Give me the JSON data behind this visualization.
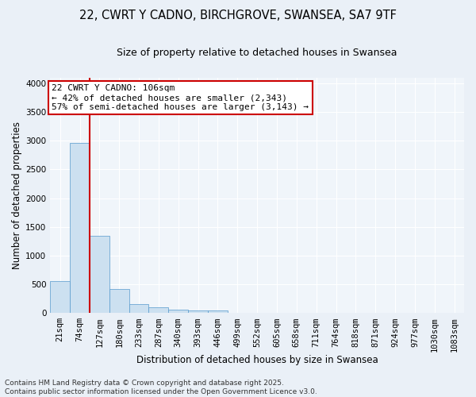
{
  "title_line1": "22, CWRT Y CADNO, BIRCHGROVE, SWANSEA, SA7 9TF",
  "title_line2": "Size of property relative to detached houses in Swansea",
  "xlabel": "Distribution of detached houses by size in Swansea",
  "ylabel": "Number of detached properties",
  "bin_labels": [
    "21sqm",
    "74sqm",
    "127sqm",
    "180sqm",
    "233sqm",
    "287sqm",
    "340sqm",
    "393sqm",
    "446sqm",
    "499sqm",
    "552sqm",
    "605sqm",
    "658sqm",
    "711sqm",
    "764sqm",
    "818sqm",
    "871sqm",
    "924sqm",
    "977sqm",
    "1030sqm",
    "1083sqm"
  ],
  "bar_heights": [
    560,
    2960,
    1350,
    420,
    160,
    100,
    60,
    45,
    45,
    5,
    0,
    0,
    0,
    0,
    0,
    0,
    0,
    0,
    0,
    0,
    0
  ],
  "bar_color": "#cce0f0",
  "bar_edge_color": "#5599cc",
  "vline_x": 2.0,
  "vline_color": "#cc0000",
  "annotation_text": "22 CWRT Y CADNO: 106sqm\n← 42% of detached houses are smaller (2,343)\n57% of semi-detached houses are larger (3,143) →",
  "annotation_box_color": "#cc0000",
  "annotation_box_facecolor": "white",
  "ylim": [
    0,
    4100
  ],
  "yticks": [
    0,
    500,
    1000,
    1500,
    2000,
    2500,
    3000,
    3500,
    4000
  ],
  "footer_text": "Contains HM Land Registry data © Crown copyright and database right 2025.\nContains public sector information licensed under the Open Government Licence v3.0.",
  "bg_color": "#eaf0f7",
  "plot_bg_color": "#f0f5fa",
  "grid_color": "#ffffff",
  "title_fontsize": 10.5,
  "subtitle_fontsize": 9,
  "axis_label_fontsize": 8.5,
  "tick_fontsize": 7.5,
  "footer_fontsize": 6.5,
  "annotation_fontsize": 8
}
